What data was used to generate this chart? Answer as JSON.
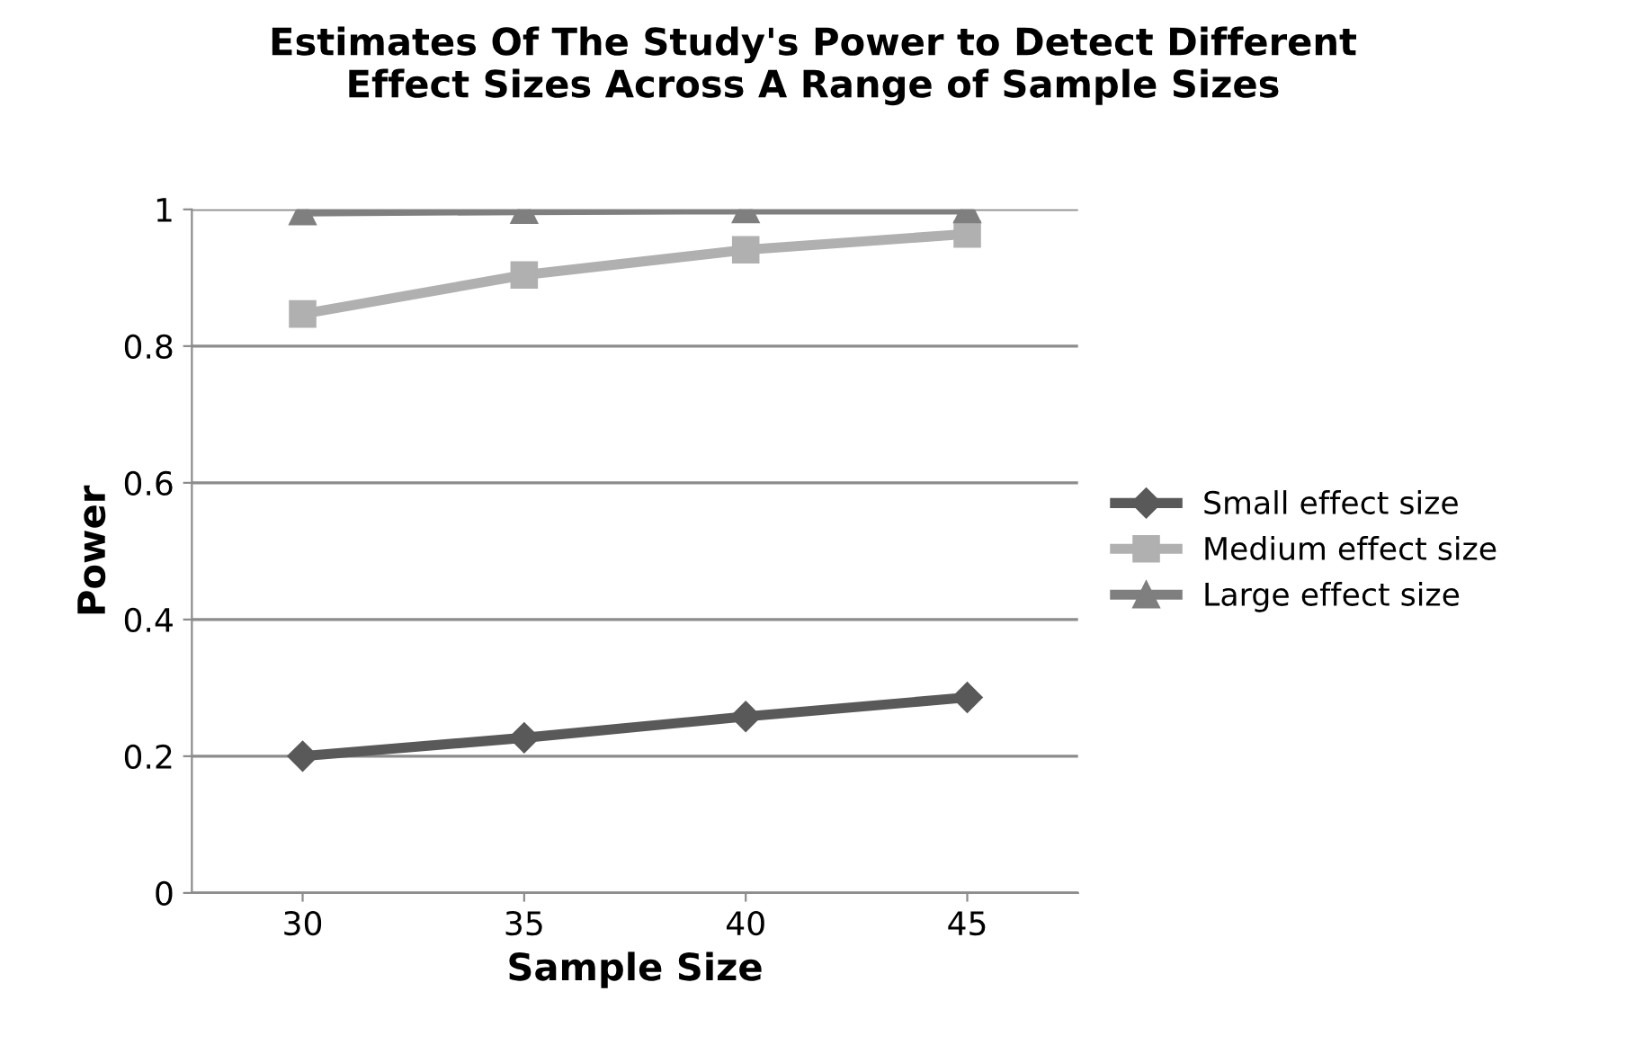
{
  "chart_data": {
    "type": "line",
    "title": "Estimates Of The Study's Power to Detect Different\nEffect Sizes Across A Range of Sample Sizes",
    "xlabel": "Sample Size",
    "ylabel": "Power",
    "categories": [
      "30",
      "35",
      "40",
      "45"
    ],
    "series": [
      {
        "name": "Small effect size",
        "color": "#595959",
        "marker": "diamond",
        "values": [
          0.2,
          0.227,
          0.258,
          0.286
        ]
      },
      {
        "name": "Medium effect size",
        "color": "#b0b0b0",
        "marker": "square",
        "values": [
          0.847,
          0.904,
          0.941,
          0.964
        ]
      },
      {
        "name": "Large effect size",
        "color": "#7f7f7f",
        "marker": "triangle",
        "values": [
          0.997,
          0.999,
          1.0,
          1.0
        ]
      }
    ],
    "ylim": [
      0,
      1
    ],
    "yticks": [
      0,
      0.2,
      0.4,
      0.6,
      0.8,
      1
    ],
    "grid": "y",
    "legend": "right",
    "line_style": "solid"
  }
}
